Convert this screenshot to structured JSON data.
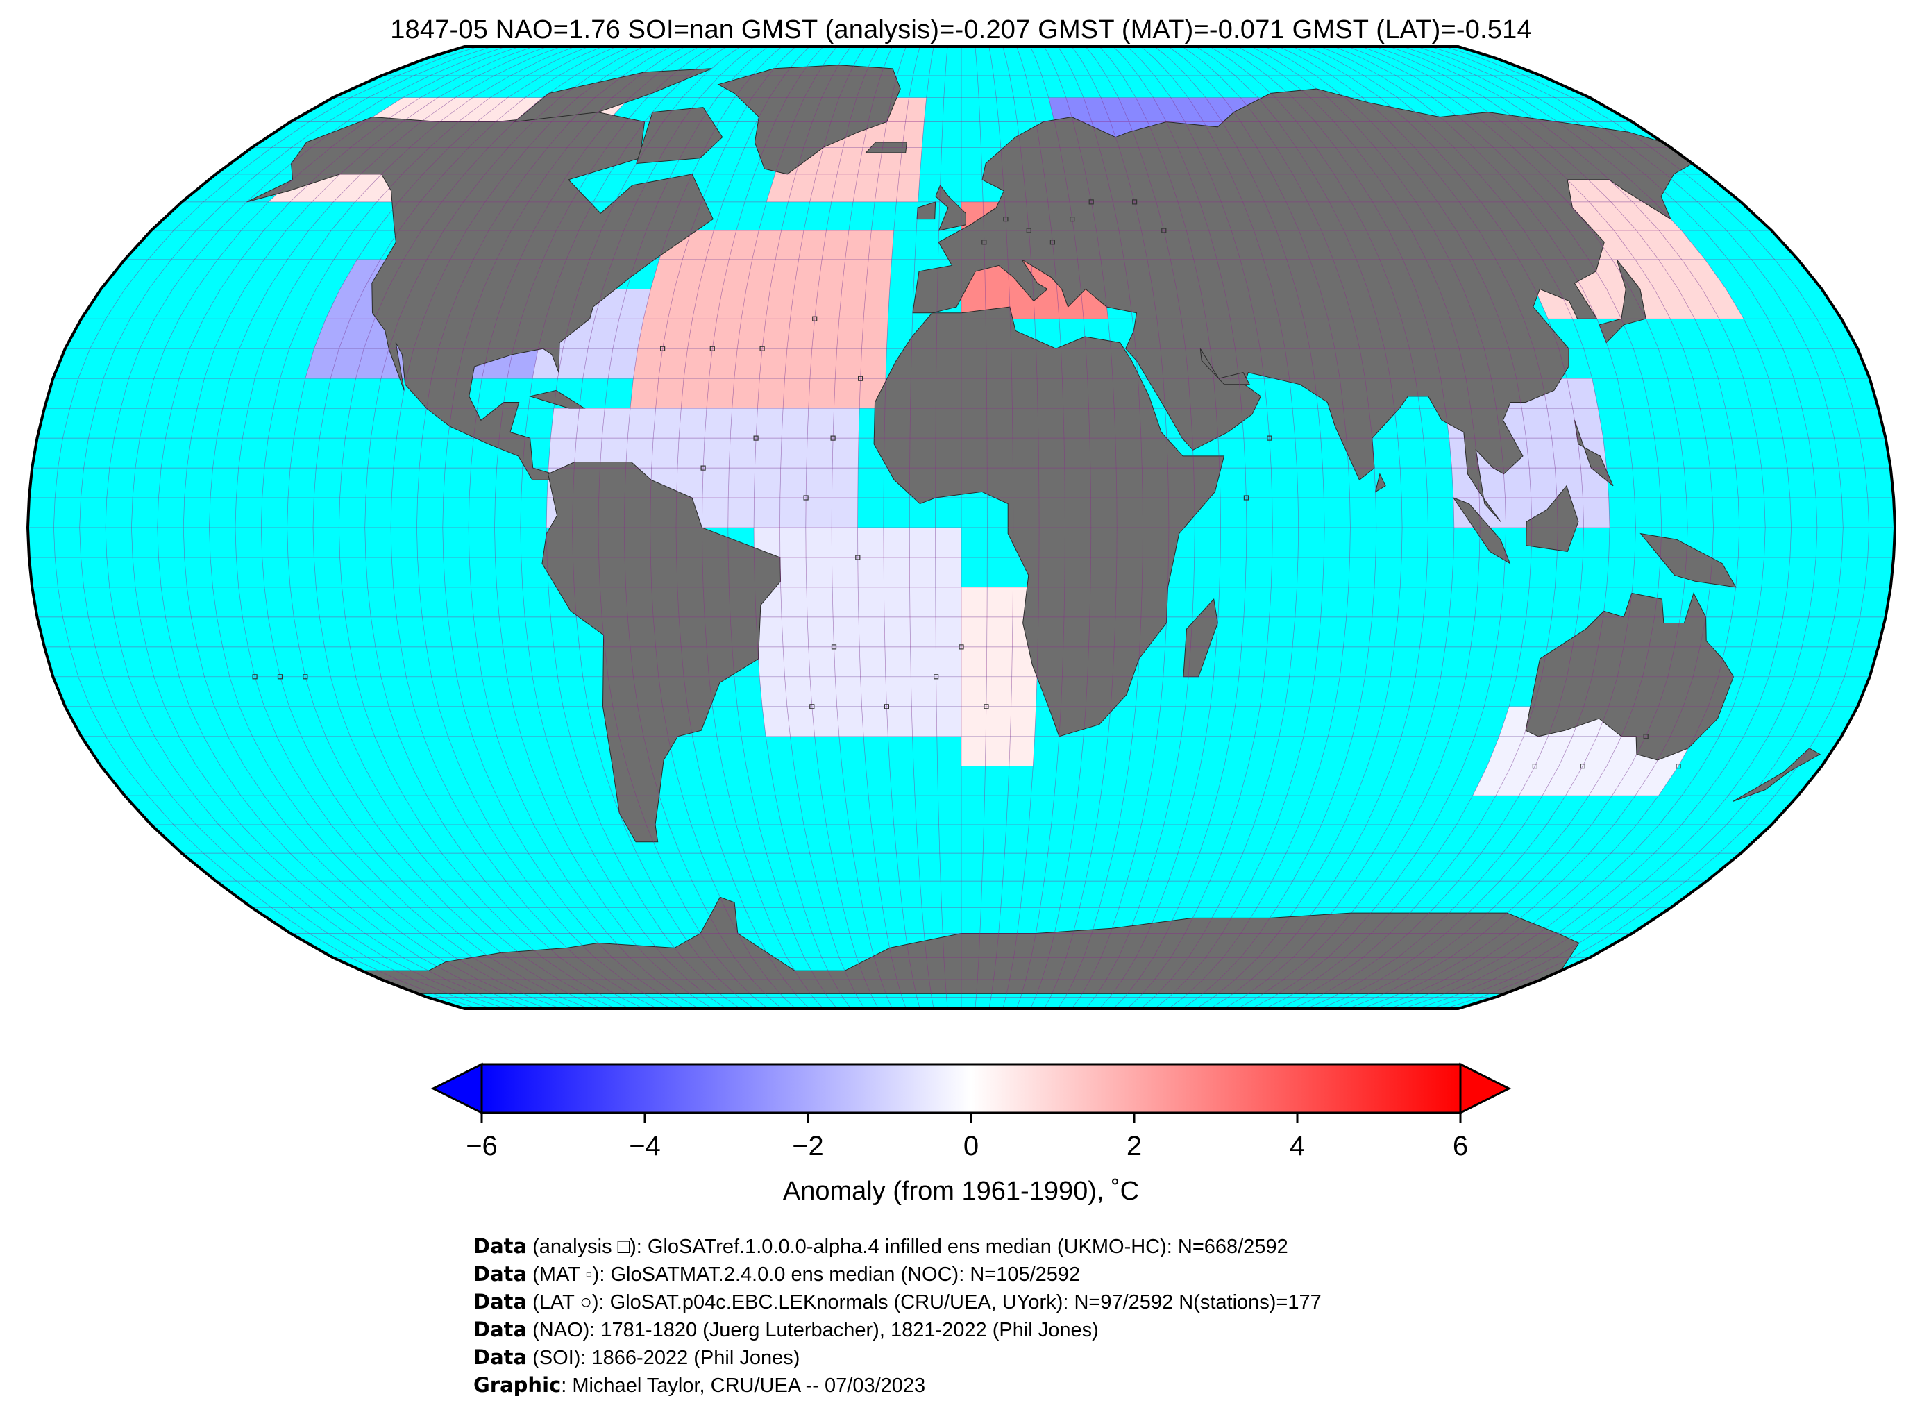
{
  "title": "1847-05 NAO=1.76 SOI=nan GMST (analysis)=-0.207 GMST (MAT)=-0.071 GMST (LAT)=-0.514",
  "colors": {
    "ocean": "#00ffff",
    "land": "#6e6e6e",
    "gridline": "#8a2a8a",
    "cold": "#0000ff",
    "neutral": "#ffffff",
    "warm": "#ff0000"
  },
  "chart_data": {
    "type": "heatmap",
    "projection": "Robinson",
    "grid_resolution_deg": 5,
    "field": "temperature anomaly",
    "colormap": "bwr",
    "value_range": [
      -6,
      6
    ],
    "region_anomalies": [
      {
        "lon": [
          -130,
          -85
        ],
        "lat": [
          25,
          45
        ],
        "value": -2.0
      },
      {
        "lon": [
          -85,
          -65
        ],
        "lat": [
          25,
          40
        ],
        "value": -1.0
      },
      {
        "lon": [
          -65,
          -15
        ],
        "lat": [
          20,
          50
        ],
        "value": 1.5
      },
      {
        "lon": [
          -80,
          -20
        ],
        "lat": [
          0,
          20
        ],
        "value": -0.8
      },
      {
        "lon": [
          -40,
          0
        ],
        "lat": [
          -35,
          0
        ],
        "value": -0.5
      },
      {
        "lon": [
          0,
          15
        ],
        "lat": [
          -40,
          -10
        ],
        "value": 0.4
      },
      {
        "lon": [
          -45,
          -10
        ],
        "lat": [
          55,
          75
        ],
        "value": 1.2
      },
      {
        "lon": [
          -160,
          -95
        ],
        "lat": [
          55,
          75
        ],
        "value": 0.6
      },
      {
        "lon": [
          0,
          30
        ],
        "lat": [
          35,
          55
        ],
        "value": 2.8
      },
      {
        "lon": [
          25,
          110
        ],
        "lat": [
          45,
          75
        ],
        "value": -2.8
      },
      {
        "lon": [
          120,
          160
        ],
        "lat": [
          35,
          65
        ],
        "value": 0.9
      },
      {
        "lon": [
          95,
          125
        ],
        "lat": [
          0,
          25
        ],
        "value": -1.0
      },
      {
        "lon": [
          110,
          150
        ],
        "lat": [
          -45,
          -30
        ],
        "value": -0.3
      }
    ],
    "colorbar": {
      "ticks": [
        -6,
        -4,
        -2,
        0,
        2,
        4,
        6
      ],
      "tick_labels": [
        "−6",
        "−4",
        "−2",
        "0",
        "2",
        "4",
        "6"
      ],
      "extend": "both"
    }
  },
  "colorbar_label": "Anomaly (from 1961-1990), ˚C",
  "credits": [
    {
      "key": "Data",
      "text": " (analysis □): GloSATref.1.0.0.0-alpha.4 infilled ens median (UKMO-HC): N=668/2592"
    },
    {
      "key": "Data",
      "text": " (MAT ▫): GloSATMAT.2.4.0.0 ens median (NOC): N=105/2592"
    },
    {
      "key": "Data",
      "text": " (LAT ○): GloSAT.p04c.EBC.LEKnormals (CRU/UEA, UYork): N=97/2592 N(stations)=177"
    },
    {
      "key": "Data",
      "text": " (NAO): 1781-1820 (Juerg Luterbacher), 1821-2022 (Phil Jones)"
    },
    {
      "key": "Data",
      "text": " (SOI): 1866-2022 (Phil Jones)"
    },
    {
      "key": "Graphic",
      "text": ": Michael Taylor, CRU/UEA -- 07/03/2023"
    }
  ]
}
